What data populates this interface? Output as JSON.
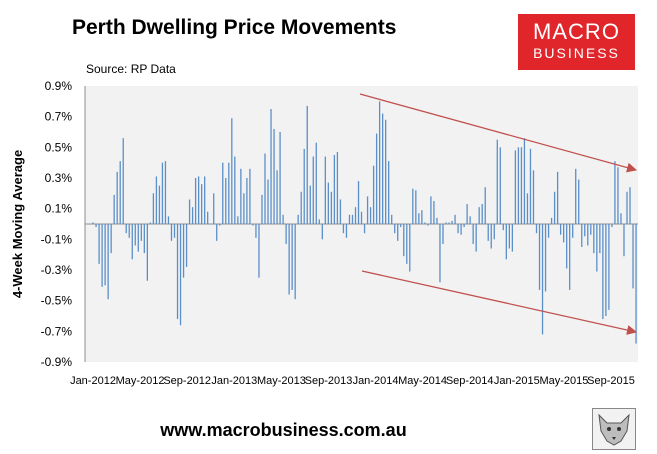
{
  "header": {
    "title": "Perth Dwelling Price Movements",
    "logo_line1": "MACRO",
    "logo_line2": "BUSINESS"
  },
  "footer": {
    "url": "www.macrobusiness.com.au"
  },
  "colors": {
    "bars": "#5b8fc9",
    "trend_arrows": "#c0504d",
    "logo_bg": "#e0262b",
    "plot_bg": "#f2f2f2"
  },
  "chart_data": {
    "type": "bar",
    "title": "Perth Dwelling Price Movements",
    "subtitle": "Source: RP Data",
    "xlabel": "",
    "ylabel": "4-Week Moving Average",
    "ylim": [
      -0.9,
      0.9
    ],
    "y_ticks": [
      "0.9%",
      "0.7%",
      "0.5%",
      "0.3%",
      "0.1%",
      "-0.1%",
      "-0.3%",
      "-0.5%",
      "-0.7%",
      "-0.9%"
    ],
    "x_tick_labels": [
      "Jan-2012",
      "May-2012",
      "Sep-2012",
      "Jan-2013",
      "May-2013",
      "Sep-2013",
      "Jan-2014",
      "May-2014",
      "Sep-2014",
      "Jan-2015",
      "May-2015",
      "Sep-2015"
    ],
    "grid": false,
    "legend": "none",
    "series": [
      {
        "values": [
          0.01,
          -0.02,
          -0.26,
          -0.41,
          -0.4,
          -0.49,
          -0.19,
          0.19,
          0.34,
          0.41,
          0.56,
          -0.06,
          -0.09,
          -0.23,
          -0.14,
          -0.18,
          -0.11,
          -0.19,
          -0.37,
          0.01,
          0.2,
          0.31,
          0.25,
          0.4,
          0.41,
          0.05,
          -0.11,
          -0.09,
          -0.62,
          -0.66,
          -0.35,
          -0.28,
          0.16,
          0.11,
          0.3,
          0.31,
          0.26,
          0.31,
          0.08,
          0.0,
          0.2,
          -0.11,
          -0.01,
          0.4,
          0.3,
          0.4,
          0.69,
          0.44,
          0.05,
          0.36,
          0.2,
          0.3,
          0.36,
          -0.01,
          -0.09,
          -0.35,
          0.19,
          0.46,
          0.29,
          0.75,
          0.62,
          0.35,
          0.6,
          0.06,
          -0.13,
          -0.46,
          -0.43,
          -0.49,
          0.06,
          0.21,
          0.49,
          0.77,
          0.25,
          0.44,
          0.53,
          0.03,
          -0.1,
          0.44,
          0.27,
          0.21,
          0.45,
          0.47,
          0.16,
          -0.06,
          -0.09,
          0.06,
          0.06,
          0.11,
          0.28,
          0.08,
          -0.06,
          0.18,
          0.11,
          0.38,
          0.59,
          0.8,
          0.72,
          0.68,
          0.41,
          0.06,
          -0.06,
          -0.11,
          -0.02,
          -0.21,
          -0.26,
          -0.31,
          0.23,
          0.22,
          0.07,
          0.09,
          0.01,
          -0.01,
          0.18,
          0.15,
          0.04,
          -0.38,
          -0.13,
          0.01,
          0.01,
          0.02,
          0.06,
          -0.06,
          -0.07,
          -0.02,
          0.13,
          0.05,
          -0.13,
          -0.18,
          0.11,
          0.13,
          0.24,
          -0.11,
          -0.16,
          -0.1,
          0.55,
          0.5,
          -0.04,
          -0.23,
          -0.16,
          -0.18,
          0.48,
          0.5,
          0.5,
          0.56,
          0.2,
          0.49,
          0.35,
          -0.06,
          -0.43,
          -0.72,
          -0.44,
          -0.09,
          0.04,
          0.21,
          0.34,
          -0.07,
          -0.12,
          -0.29,
          -0.43,
          -0.09,
          0.36,
          0.29,
          -0.15,
          -0.08,
          -0.14,
          -0.07,
          -0.19,
          -0.31,
          -0.19,
          -0.62,
          -0.6,
          -0.56,
          -0.02,
          0.41,
          0.37,
          0.07,
          -0.21,
          0.21,
          0.24,
          -0.42,
          -0.78
        ]
      }
    ]
  }
}
